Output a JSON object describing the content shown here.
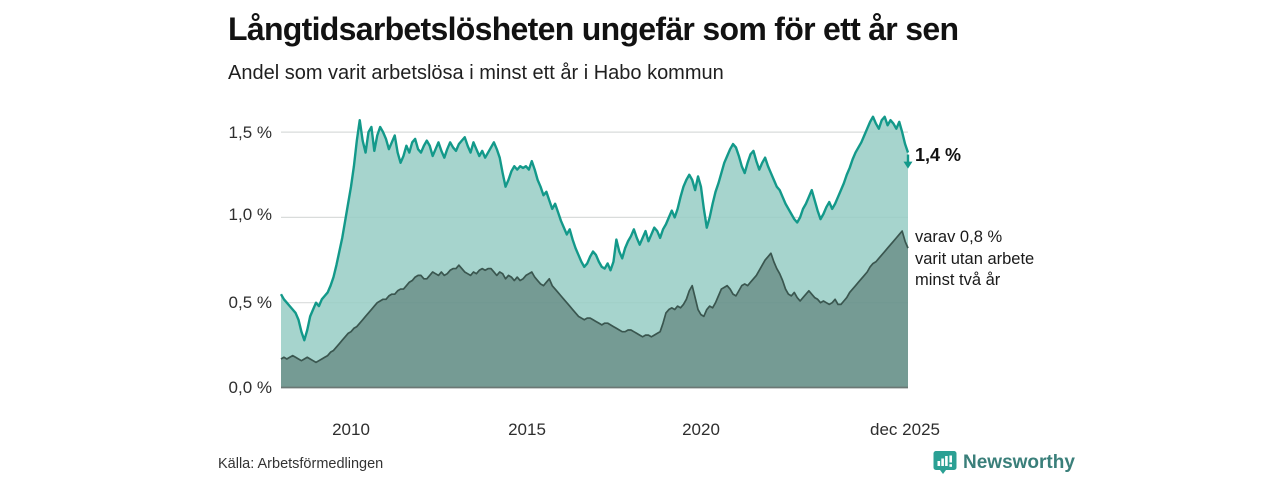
{
  "header": {
    "title": "Långtidsarbetslösheten ungefär som för ett år sen",
    "subtitle": "Andel som varit arbetslösa i minst ett år i Habo kommun"
  },
  "chart_data": {
    "type": "area",
    "title": "Långtidsarbetslösheten ungefär som för ett år sen",
    "subtitle": "Andel som varit arbetslösa i minst ett år i Habo kommun",
    "unit": "%",
    "x_range": [
      "jan 2008",
      "dec 2025"
    ],
    "x_tick_labels": [
      "2010",
      "2015",
      "2020",
      "dec 2025"
    ],
    "y_tick_labels": [
      "1,5 %",
      "1,0 %",
      "0,5 %",
      "0,0 %"
    ],
    "ylim": [
      0,
      1.6
    ],
    "grid_values": [
      0.5,
      1.0,
      1.5
    ],
    "legend_position": "none",
    "series": [
      {
        "name": "Arbetslösa minst ett år",
        "latest_label": "1,4 %",
        "line_color": "#13998a",
        "fill_color": "rgba(150,205,196,0.85)",
        "values": [
          0.55,
          0.52,
          0.5,
          0.48,
          0.46,
          0.44,
          0.4,
          0.33,
          0.28,
          0.34,
          0.42,
          0.46,
          0.5,
          0.48,
          0.52,
          0.54,
          0.56,
          0.6,
          0.65,
          0.72,
          0.8,
          0.88,
          0.98,
          1.08,
          1.18,
          1.3,
          1.45,
          1.57,
          1.45,
          1.38,
          1.5,
          1.53,
          1.39,
          1.48,
          1.53,
          1.5,
          1.46,
          1.4,
          1.44,
          1.48,
          1.38,
          1.32,
          1.36,
          1.42,
          1.38,
          1.44,
          1.46,
          1.4,
          1.38,
          1.42,
          1.45,
          1.42,
          1.36,
          1.4,
          1.44,
          1.39,
          1.35,
          1.4,
          1.44,
          1.41,
          1.39,
          1.43,
          1.45,
          1.47,
          1.42,
          1.38,
          1.44,
          1.4,
          1.36,
          1.39,
          1.35,
          1.38,
          1.41,
          1.44,
          1.4,
          1.35,
          1.26,
          1.18,
          1.22,
          1.27,
          1.3,
          1.28,
          1.3,
          1.29,
          1.3,
          1.28,
          1.33,
          1.28,
          1.22,
          1.18,
          1.13,
          1.15,
          1.1,
          1.05,
          1.08,
          1.03,
          0.98,
          0.94,
          0.9,
          0.93,
          0.87,
          0.82,
          0.78,
          0.74,
          0.71,
          0.73,
          0.77,
          0.8,
          0.78,
          0.74,
          0.71,
          0.7,
          0.73,
          0.69,
          0.74,
          0.87,
          0.8,
          0.76,
          0.82,
          0.86,
          0.89,
          0.93,
          0.88,
          0.84,
          0.88,
          0.92,
          0.86,
          0.9,
          0.94,
          0.92,
          0.88,
          0.93,
          0.96,
          1.0,
          1.04,
          1.0,
          1.05,
          1.12,
          1.18,
          1.22,
          1.25,
          1.22,
          1.16,
          1.24,
          1.18,
          1.05,
          0.94,
          1.0,
          1.08,
          1.15,
          1.2,
          1.26,
          1.32,
          1.36,
          1.4,
          1.43,
          1.41,
          1.36,
          1.3,
          1.26,
          1.32,
          1.37,
          1.39,
          1.33,
          1.28,
          1.32,
          1.35,
          1.3,
          1.26,
          1.22,
          1.18,
          1.16,
          1.12,
          1.08,
          1.05,
          1.02,
          0.99,
          0.97,
          1.0,
          1.05,
          1.08,
          1.12,
          1.16,
          1.1,
          1.04,
          0.99,
          1.02,
          1.06,
          1.09,
          1.05,
          1.08,
          1.12,
          1.16,
          1.2,
          1.25,
          1.29,
          1.34,
          1.38,
          1.41,
          1.44,
          1.48,
          1.52,
          1.56,
          1.59,
          1.55,
          1.52,
          1.57,
          1.59,
          1.54,
          1.57,
          1.55,
          1.52,
          1.56,
          1.5,
          1.43,
          1.38
        ]
      },
      {
        "name": "Utan arbete minst två år",
        "latest_label": "0,8 %",
        "line_color": "#3a564f",
        "fill_color": "rgba(58,86,79,0.45)",
        "values": [
          0.17,
          0.18,
          0.17,
          0.18,
          0.19,
          0.18,
          0.17,
          0.16,
          0.17,
          0.18,
          0.17,
          0.16,
          0.15,
          0.16,
          0.17,
          0.18,
          0.19,
          0.21,
          0.22,
          0.24,
          0.26,
          0.28,
          0.3,
          0.32,
          0.33,
          0.35,
          0.36,
          0.38,
          0.4,
          0.42,
          0.44,
          0.46,
          0.48,
          0.5,
          0.51,
          0.52,
          0.52,
          0.54,
          0.55,
          0.55,
          0.57,
          0.58,
          0.58,
          0.6,
          0.62,
          0.63,
          0.65,
          0.66,
          0.66,
          0.64,
          0.64,
          0.66,
          0.68,
          0.67,
          0.66,
          0.68,
          0.66,
          0.67,
          0.69,
          0.7,
          0.7,
          0.72,
          0.7,
          0.68,
          0.67,
          0.66,
          0.68,
          0.67,
          0.69,
          0.7,
          0.69,
          0.7,
          0.7,
          0.68,
          0.66,
          0.68,
          0.67,
          0.64,
          0.66,
          0.65,
          0.63,
          0.65,
          0.63,
          0.64,
          0.66,
          0.67,
          0.68,
          0.65,
          0.63,
          0.61,
          0.6,
          0.62,
          0.64,
          0.6,
          0.58,
          0.56,
          0.54,
          0.52,
          0.5,
          0.48,
          0.46,
          0.44,
          0.42,
          0.41,
          0.4,
          0.41,
          0.41,
          0.4,
          0.39,
          0.38,
          0.37,
          0.38,
          0.38,
          0.37,
          0.36,
          0.35,
          0.34,
          0.33,
          0.33,
          0.34,
          0.34,
          0.33,
          0.32,
          0.31,
          0.3,
          0.31,
          0.31,
          0.3,
          0.31,
          0.32,
          0.33,
          0.38,
          0.44,
          0.46,
          0.47,
          0.46,
          0.48,
          0.47,
          0.49,
          0.52,
          0.57,
          0.6,
          0.53,
          0.46,
          0.43,
          0.42,
          0.46,
          0.48,
          0.47,
          0.5,
          0.54,
          0.58,
          0.59,
          0.6,
          0.58,
          0.55,
          0.54,
          0.57,
          0.6,
          0.61,
          0.6,
          0.62,
          0.64,
          0.66,
          0.69,
          0.72,
          0.75,
          0.77,
          0.79,
          0.74,
          0.7,
          0.67,
          0.63,
          0.58,
          0.55,
          0.54,
          0.56,
          0.53,
          0.51,
          0.53,
          0.55,
          0.57,
          0.55,
          0.53,
          0.52,
          0.5,
          0.51,
          0.5,
          0.49,
          0.5,
          0.52,
          0.49,
          0.49,
          0.51,
          0.53,
          0.56,
          0.58,
          0.6,
          0.62,
          0.64,
          0.66,
          0.68,
          0.71,
          0.73,
          0.74,
          0.76,
          0.78,
          0.8,
          0.82,
          0.84,
          0.86,
          0.88,
          0.9,
          0.92,
          0.86,
          0.82
        ]
      }
    ],
    "grid_color": "#d9dcdb",
    "baseline_color": "#6b7875"
  },
  "annotations": {
    "latest_value": "1,4 %",
    "sub_lines": [
      "varav 0,8 %",
      "varit utan arbete",
      "minst två år"
    ]
  },
  "footer": {
    "source": "Källa: Arbetsförmedlingen",
    "brand": "Newsworthy",
    "brand_color": "#3a7f7a",
    "logo_color": "#2ba094"
  }
}
